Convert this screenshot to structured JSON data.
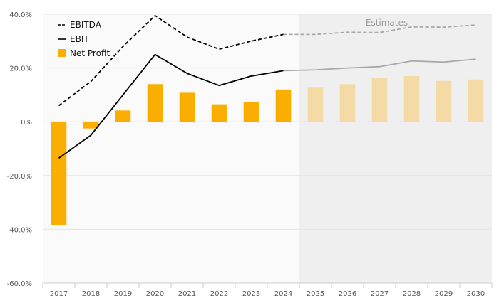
{
  "chart_data": {
    "type": "bar",
    "categories": [
      "2017",
      "2018",
      "2019",
      "2020",
      "2021",
      "2022",
      "2023",
      "2024",
      "2025",
      "2026",
      "2027",
      "2028",
      "2029",
      "2030"
    ],
    "estimates_from": "2025",
    "estimates_label": "Estimates",
    "ylim": [
      -60,
      40
    ],
    "yticks": [
      40,
      20,
      0,
      -20,
      -40,
      -60
    ],
    "ytick_labels": [
      "40.0%",
      "20.0%",
      "0%",
      "-20.0%",
      "-40.0%",
      "-60.0%"
    ],
    "grid": true,
    "legend_position": "top-left",
    "series": [
      {
        "name": "EBITDA",
        "kind": "line",
        "style": "dashed",
        "values": [
          6,
          15,
          28,
          39.5,
          31.5,
          27,
          30,
          32.5,
          32.5,
          33.3,
          33.2,
          35.3,
          35.2,
          36
        ]
      },
      {
        "name": "EBIT",
        "kind": "line",
        "style": "solid",
        "values": [
          -13.5,
          -5,
          10,
          25,
          18,
          13.5,
          17,
          19,
          19.3,
          20,
          20.5,
          22.6,
          22.2,
          23.3
        ]
      },
      {
        "name": "Net Profit",
        "kind": "bar",
        "values": [
          -38.5,
          -2.5,
          4.2,
          14,
          10.8,
          6.5,
          7.4,
          12,
          12.7,
          14,
          16.2,
          17,
          15.2,
          15.7
        ]
      }
    ],
    "colors": {
      "bar": "#f9ae00",
      "bar_estimate": "#f4dba5",
      "line": "#000000",
      "line_estimate": "#a8a8a8",
      "estimate_band": "#efefef",
      "grid": "#e4e4e4"
    }
  }
}
